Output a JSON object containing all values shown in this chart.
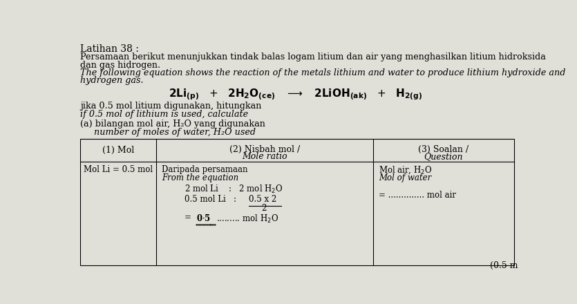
{
  "bg_color": "#e0dfd8",
  "title_line": "Latihan 38 :",
  "malay_text_line1": "Persamaan berikut menunjukkan tindak balas logam litium dan air yang menghasilkan litium hidroksida",
  "malay_text_line2": "dan gas hidrogen.",
  "english_italic_line1": "The following equation shows the reaction of the metals lithium and water to produce lithium hydroxide and",
  "english_italic_line2": "hydrogen gas.",
  "jika_line": "jika 0.5 mol litium digunakan, hitungkan",
  "if_line": "if 0.5 mol of lithium is used, calculate",
  "part_a_malay": "(a) bilangan mol air, H₂O yang digunakan",
  "part_a_english": "     number of moles of water, H₂O used",
  "col1_header": "(1) Mol",
  "col2_header": "(2) Nisbah mol / Mole ratio",
  "col3_header": "(3) Soalan / Question",
  "col1_row1": "Mol Li = 0.5 mol",
  "col2_row1a": "Daripada persamaan",
  "col2_row1b": "From the equation",
  "col3_row1a": "Mol air, H₂O",
  "col3_row1b": "Mol of water",
  "col3_row1c": "= .............. mol air",
  "bottom_right": "(0.5 m"
}
